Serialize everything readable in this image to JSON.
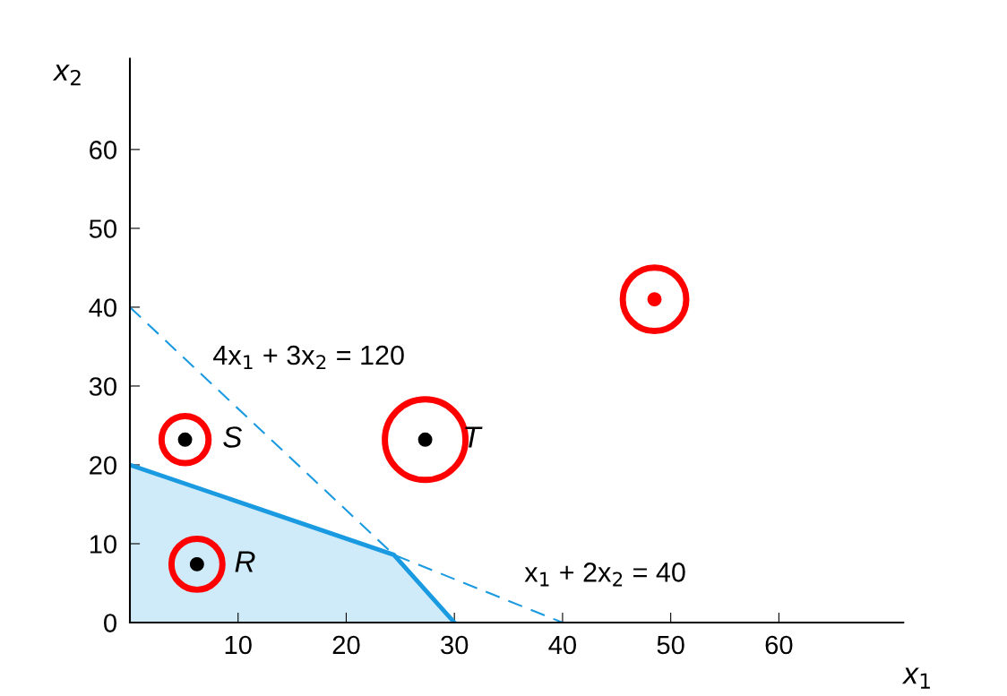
{
  "chart_data": {
    "type": "line",
    "xlabel": "x$_{1}$",
    "ylabel": "x$_{2}$",
    "xlim": [
      0,
      71.5
    ],
    "ylim": [
      0,
      71.5
    ],
    "xticks": [
      10,
      20,
      30,
      40,
      50,
      60
    ],
    "yticks": [
      0,
      10,
      20,
      30,
      40,
      50,
      60
    ],
    "grid": false,
    "legend": false,
    "series": [
      {
        "type": "area",
        "x": [
          0,
          24.4,
          30
        ],
        "values": [
          20,
          8.6,
          0
        ],
        "color": "#1a9ae0"
      },
      {
        "x": [
          0,
          24.4,
          40
        ],
        "values": [
          40,
          8.6,
          0
        ],
        "color": "#1a9ae0",
        "line_style": "dashed"
      },
      {
        "type": "scatter",
        "x": [
          5.1,
          27.3,
          6.2
        ],
        "values": [
          23.2,
          23.2,
          7.4
        ],
        "color": "#000000",
        "marker": "circle"
      },
      {
        "type": "bubble",
        "x": [
          5.1,
          27.3,
          6.2,
          48.5
        ],
        "values": [
          23.2,
          23.2,
          7.4,
          41
        ],
        "sizes": [
          0.34,
          1,
          0.4,
          0.62
        ],
        "color": "#ff0000"
      },
      {
        "type": "scatter",
        "x": [
          48.5
        ],
        "values": [
          41
        ],
        "color": "#ff0000",
        "marker": "circle"
      }
    ],
    "annotations": [
      {
        "text": "S",
        "x": 5.1,
        "y": 23.2
      },
      {
        "text": "T",
        "x": 27.3,
        "y": 23.2
      },
      {
        "text": "R",
        "x": 6.2,
        "y": 7.4
      },
      "4x$_{1}$ + 3x$_{2}$ = 120",
      "x$_{1}$ + 2x$_{2}$ = 40"
    ]
  }
}
